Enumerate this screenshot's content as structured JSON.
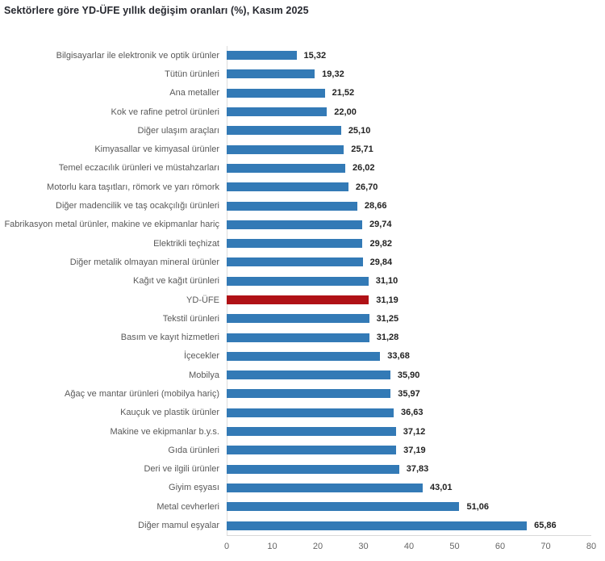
{
  "title": "Sektörlere göre YD-ÜFE yıllık değişim oranları (%), Kasım 2025",
  "colors": {
    "bar": "#337ab6",
    "highlight": "#b01116",
    "axis_line": "#d9d9d9",
    "category_label": "#595959",
    "value_label": "#222222",
    "tick_label": "#666666",
    "title": "#26282f"
  },
  "chart_data": {
    "type": "bar",
    "orientation": "horizontal",
    "title": "Sektörlere göre YD-ÜFE yıllık değişim oranları (%), Kasım 2025",
    "categories": [
      "Bilgisayarlar ile elektronik ve optik ürünler",
      "Tütün ürünleri",
      "Ana metaller",
      "Kok ve rafine petrol ürünleri",
      "Diğer ulaşım araçları",
      "Kimyasallar ve kimyasal ürünler",
      "Temel eczacılık ürünleri ve müstahzarları",
      "Motorlu kara taşıtları, römork ve yarı römork",
      "Diğer madencilik ve taş ocakçılığı ürünleri",
      "Fabrikasyon metal ürünler, makine ve ekipmanlar hariç",
      "Elektrikli teçhizat",
      "Diğer metalik olmayan mineral ürünler",
      "Kağıt ve kağıt ürünleri",
      "YD-ÜFE",
      "Tekstil ürünleri",
      "Basım ve kayıt hizmetleri",
      "İçecekler",
      "Mobilya",
      "Ağaç ve mantar ürünleri (mobilya hariç)",
      "Kauçuk ve plastik ürünler",
      "Makine ve ekipmanlar b.y.s.",
      "Gıda ürünleri",
      "Deri ve ilgili ürünler",
      "Giyim eşyası",
      "Metal cevherleri",
      "Diğer mamul eşyalar"
    ],
    "values": [
      15.32,
      19.32,
      21.52,
      22.0,
      25.1,
      25.71,
      26.02,
      26.7,
      28.66,
      29.74,
      29.82,
      29.84,
      31.1,
      31.19,
      31.25,
      31.28,
      33.68,
      35.9,
      35.97,
      36.63,
      37.12,
      37.19,
      37.83,
      43.01,
      51.06,
      65.86
    ],
    "value_labels": [
      "15,32",
      "19,32",
      "21,52",
      "22,00",
      "25,10",
      "25,71",
      "26,02",
      "26,70",
      "28,66",
      "29,74",
      "29,82",
      "29,84",
      "31,10",
      "31,19",
      "31,25",
      "31,28",
      "33,68",
      "35,90",
      "35,97",
      "36,63",
      "37,12",
      "37,19",
      "37,83",
      "43,01",
      "51,06",
      "65,86"
    ],
    "highlight_category": "YD-ÜFE",
    "highlight_index": 13,
    "xlabel": "",
    "ylabel": "",
    "xlim": [
      0,
      80
    ],
    "x_ticks": [
      0,
      10,
      20,
      30,
      40,
      50,
      60,
      70,
      80
    ],
    "x_tick_labels": [
      "0",
      "10",
      "20",
      "30",
      "40",
      "50",
      "60",
      "70",
      "80"
    ],
    "grid": false,
    "legend": false
  }
}
